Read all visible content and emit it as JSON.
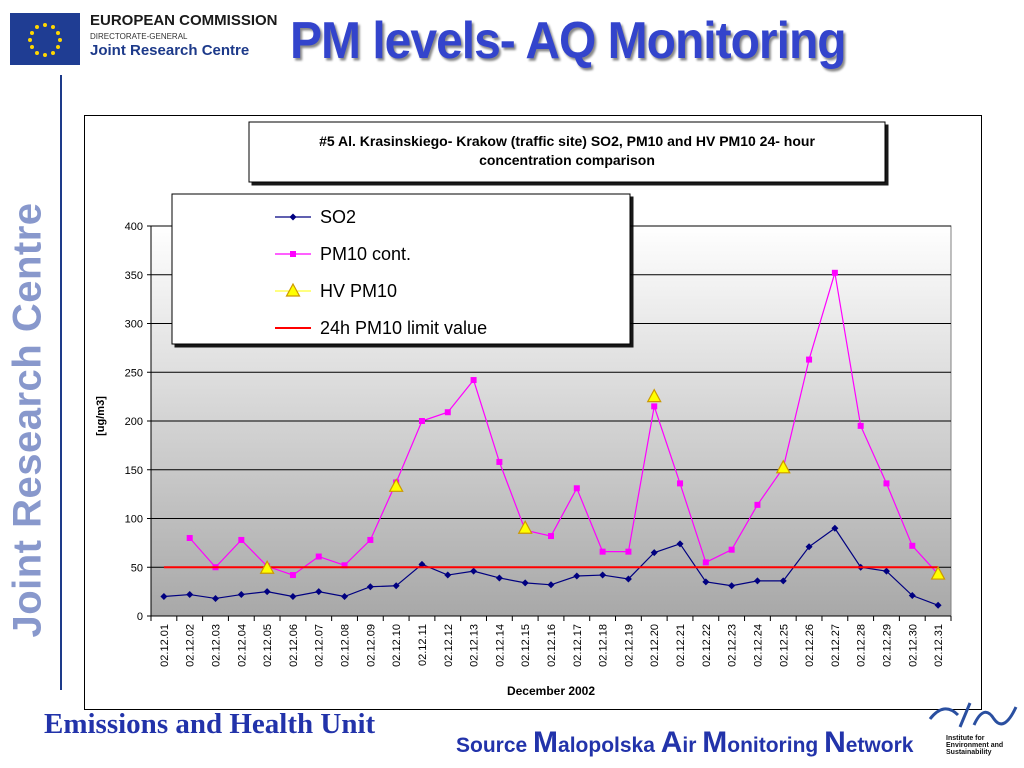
{
  "header": {
    "org_line1": "EUROPEAN COMMISSION",
    "org_line2": "DIRECTORATE-GENERAL",
    "org_line3": "Joint Research Centre",
    "slide_title": "PM levels- AQ Monitoring"
  },
  "sidebar": {
    "vertical_text": "Joint Research Centre"
  },
  "footer": {
    "unit": "Emissions and Health Unit",
    "source_prefix": "Source ",
    "source_parts": [
      {
        "big": "M",
        "rest": "alopolska "
      },
      {
        "big": "A",
        "rest": "ir "
      },
      {
        "big": "M",
        "rest": "onitoring "
      },
      {
        "big": "N",
        "rest": "etwork"
      }
    ],
    "institute_lines": [
      "Institute for",
      "Environment and",
      "Sustainability"
    ]
  },
  "colors": {
    "title": "#3344cc",
    "so2": "#000080",
    "pm10": "#ff00ff",
    "hv_fill": "#ffff00",
    "hv_stroke": "#cc9900",
    "limit": "#ff0000",
    "plot_bg_top": "#ffffff",
    "plot_bg_bottom": "#a8a8a8"
  },
  "chart_data": {
    "type": "line",
    "title_lines": [
      "#5 Al. Krasinskiego- Krakow (traffic site) SO2, PM10 and HV PM10 24- hour",
      "concentration comparison"
    ],
    "xlabel": "December 2002",
    "ylabel": "[ug/m3]",
    "ylim": [
      0,
      400
    ],
    "yticks": [
      0,
      50,
      100,
      150,
      200,
      250,
      300,
      350,
      400
    ],
    "grid": true,
    "legend_position": "top-left",
    "categories": [
      "02.12.01",
      "02.12.02",
      "02.12.03",
      "02.12.04",
      "02.12.05",
      "02.12.06",
      "02.12.07",
      "02.12.08",
      "02.12.09",
      "02.12.10",
      "02.12.11",
      "02.12.12",
      "02.12.13",
      "02.12.14",
      "02.12.15",
      "02.12.16",
      "02.12.17",
      "02.12.18",
      "02.12.19",
      "02.12.20",
      "02.12.21",
      "02.12.22",
      "02.12.23",
      "02.12.24",
      "02.12.25",
      "02.12.26",
      "02.12.27",
      "02.12.28",
      "02.12.29",
      "02.12.30",
      "02.12.31"
    ],
    "series": [
      {
        "name": "SO2",
        "kind": "line-diamond",
        "values": [
          20,
          22,
          18,
          22,
          25,
          20,
          25,
          20,
          30,
          31,
          53,
          42,
          46,
          39,
          34,
          32,
          41,
          42,
          38,
          65,
          74,
          35,
          31,
          36,
          36,
          71,
          90,
          50,
          46,
          21,
          11
        ]
      },
      {
        "name": "PM10 cont.",
        "kind": "line-square",
        "values": [
          null,
          80,
          50,
          78,
          51,
          42,
          61,
          52,
          78,
          137,
          200,
          209,
          242,
          158,
          88,
          82,
          131,
          66,
          66,
          215,
          136,
          55,
          68,
          114,
          152,
          263,
          352,
          195,
          136,
          72,
          43
        ]
      },
      {
        "name": "HV PM10",
        "kind": "triangle",
        "values": [
          null,
          null,
          null,
          null,
          49,
          null,
          null,
          null,
          null,
          133,
          null,
          null,
          null,
          null,
          90,
          null,
          null,
          null,
          null,
          225,
          null,
          null,
          null,
          null,
          152,
          null,
          null,
          null,
          null,
          null,
          43
        ]
      },
      {
        "name": "24h PM10 limit value",
        "kind": "hline",
        "value": 50
      }
    ]
  }
}
